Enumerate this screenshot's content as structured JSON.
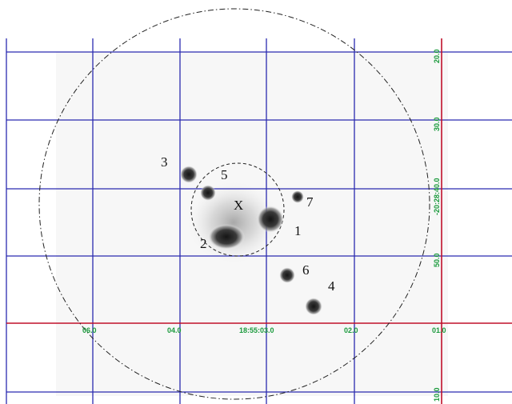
{
  "colors": {
    "grid": "#2b2bb0",
    "axis_highlight": "#c0102a",
    "label": "#1a9a3c",
    "background_field": "#f6f6f6",
    "source_text": "#111111"
  },
  "grid_labels": {
    "ra": [
      "06.0",
      "04.0",
      "18:55:03.0",
      "02.0",
      "01.0"
    ],
    "dec": [
      "20.0",
      "30.0",
      "-20:28:40.0",
      "50.0",
      "10.0"
    ]
  },
  "sources": [
    {
      "id": "1",
      "label": "1"
    },
    {
      "id": "2",
      "label": "2"
    },
    {
      "id": "3",
      "label": "3"
    },
    {
      "id": "4",
      "label": "4"
    },
    {
      "id": "5",
      "label": "5"
    },
    {
      "id": "6",
      "label": "6"
    },
    {
      "id": "7",
      "label": "7"
    }
  ],
  "center_marker": {
    "label": "X"
  }
}
